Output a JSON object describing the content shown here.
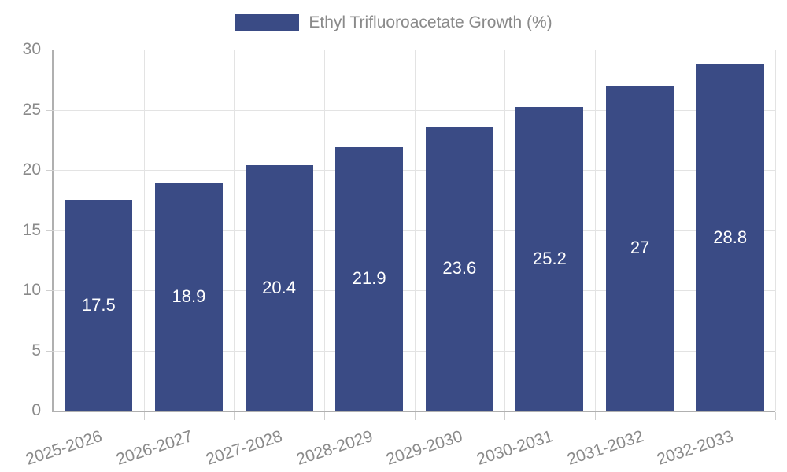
{
  "legend": {
    "label": "Ethyl Trifluoroacetate Growth (%)"
  },
  "colors": {
    "bar": "#3A4B85",
    "grid": "#E3E3E3",
    "axis": "#B0B0B0",
    "tick": "#CFCFCF",
    "axis_label": "#8A8A8A",
    "legend_text": "#8A8A8A",
    "value_label": "#FFFFFF",
    "background": "#FFFFFF"
  },
  "chart_data": {
    "type": "bar",
    "title": "",
    "categories": [
      "2025-2026",
      "2026-2027",
      "2027-2028",
      "2028-2029",
      "2029-2030",
      "2030-2031",
      "2031-2032",
      "2032-2033"
    ],
    "series": [
      {
        "name": "Ethyl Trifluoroacetate Growth (%)",
        "values": [
          17.5,
          18.9,
          20.4,
          21.9,
          23.6,
          25.2,
          27,
          28.8
        ]
      }
    ],
    "xlabel": "",
    "ylabel": "",
    "ylim": [
      0,
      30
    ],
    "yticks": [
      0,
      5,
      10,
      15,
      20,
      25,
      30
    ],
    "grid": true,
    "legend_position": "top-center",
    "value_labels": "inside-center",
    "bar_width_fraction": 0.75,
    "x_tick_label_rotation_deg": -18
  }
}
